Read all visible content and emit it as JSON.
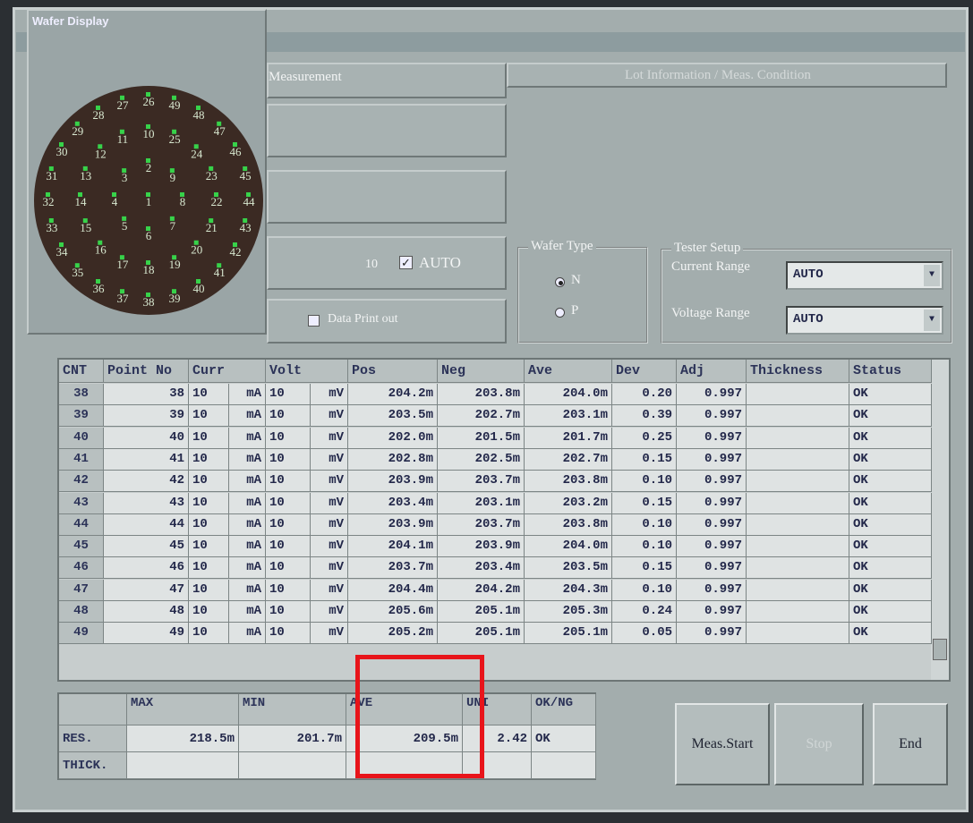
{
  "window": {
    "title": "Wafer Display",
    "measurement_tab": "Measurement",
    "lot_tab": "Lot Information / Meas. Condition"
  },
  "wafer": {
    "points": [
      1,
      2,
      3,
      4,
      5,
      6,
      7,
      8,
      9,
      10,
      11,
      12,
      13,
      14,
      15,
      16,
      17,
      18,
      19,
      20,
      21,
      22,
      23,
      24,
      25,
      26,
      27,
      28,
      29,
      30,
      31,
      32,
      33,
      34,
      35,
      36,
      37,
      38,
      39,
      40,
      41,
      42,
      43,
      44,
      45,
      46,
      47,
      48,
      49
    ]
  },
  "controls": {
    "count": "10",
    "auto_label": "AUTO",
    "data_print": "Data Print out",
    "wafer_type": {
      "label": "Wafer Type",
      "options": [
        "N",
        "P"
      ]
    },
    "tester": {
      "label": "Tester Setup",
      "current_label": "Current Range",
      "current": "AUTO",
      "voltage_label": "Voltage Range",
      "voltage": "AUTO"
    }
  },
  "table": {
    "headers": [
      "CNT",
      "Point No",
      "Curr",
      "Volt",
      "Pos",
      "Neg",
      "Ave",
      "Dev",
      "Adj",
      "Thickness",
      "Status"
    ],
    "rows": [
      [
        "38",
        "38",
        "10",
        "mA",
        "10",
        "mV",
        "204.2m",
        "203.8m",
        "204.0m",
        "0.20",
        "0.997",
        "OK"
      ],
      [
        "39",
        "39",
        "10",
        "mA",
        "10",
        "mV",
        "203.5m",
        "202.7m",
        "203.1m",
        "0.39",
        "0.997",
        "OK"
      ],
      [
        "40",
        "40",
        "10",
        "mA",
        "10",
        "mV",
        "202.0m",
        "201.5m",
        "201.7m",
        "0.25",
        "0.997",
        "OK"
      ],
      [
        "41",
        "41",
        "10",
        "mA",
        "10",
        "mV",
        "202.8m",
        "202.5m",
        "202.7m",
        "0.15",
        "0.997",
        "OK"
      ],
      [
        "42",
        "42",
        "10",
        "mA",
        "10",
        "mV",
        "203.9m",
        "203.7m",
        "203.8m",
        "0.10",
        "0.997",
        "OK"
      ],
      [
        "43",
        "43",
        "10",
        "mA",
        "10",
        "mV",
        "203.4m",
        "203.1m",
        "203.2m",
        "0.15",
        "0.997",
        "OK"
      ],
      [
        "44",
        "44",
        "10",
        "mA",
        "10",
        "mV",
        "203.9m",
        "203.7m",
        "203.8m",
        "0.10",
        "0.997",
        "OK"
      ],
      [
        "45",
        "45",
        "10",
        "mA",
        "10",
        "mV",
        "204.1m",
        "203.9m",
        "204.0m",
        "0.10",
        "0.997",
        "OK"
      ],
      [
        "46",
        "46",
        "10",
        "mA",
        "10",
        "mV",
        "203.7m",
        "203.4m",
        "203.5m",
        "0.15",
        "0.997",
        "OK"
      ],
      [
        "47",
        "47",
        "10",
        "mA",
        "10",
        "mV",
        "204.4m",
        "204.2m",
        "204.3m",
        "0.10",
        "0.997",
        "OK"
      ],
      [
        "48",
        "48",
        "10",
        "mA",
        "10",
        "mV",
        "205.6m",
        "205.1m",
        "205.3m",
        "0.24",
        "0.997",
        "OK"
      ],
      [
        "49",
        "49",
        "10",
        "mA",
        "10",
        "mV",
        "205.2m",
        "205.1m",
        "205.1m",
        "0.05",
        "0.997",
        "OK"
      ]
    ]
  },
  "summary": {
    "headers": [
      "MAX",
      "MIN",
      "AVE",
      "UNI",
      "OK/NG"
    ],
    "rows": [
      {
        "label": "RES.",
        "values": [
          "218.5m",
          "201.7m",
          "209.5m",
          "2.42",
          "OK"
        ]
      },
      {
        "label": "THICK."
      }
    ]
  },
  "buttons": [
    "Meas.Start",
    "Stop",
    "End"
  ]
}
